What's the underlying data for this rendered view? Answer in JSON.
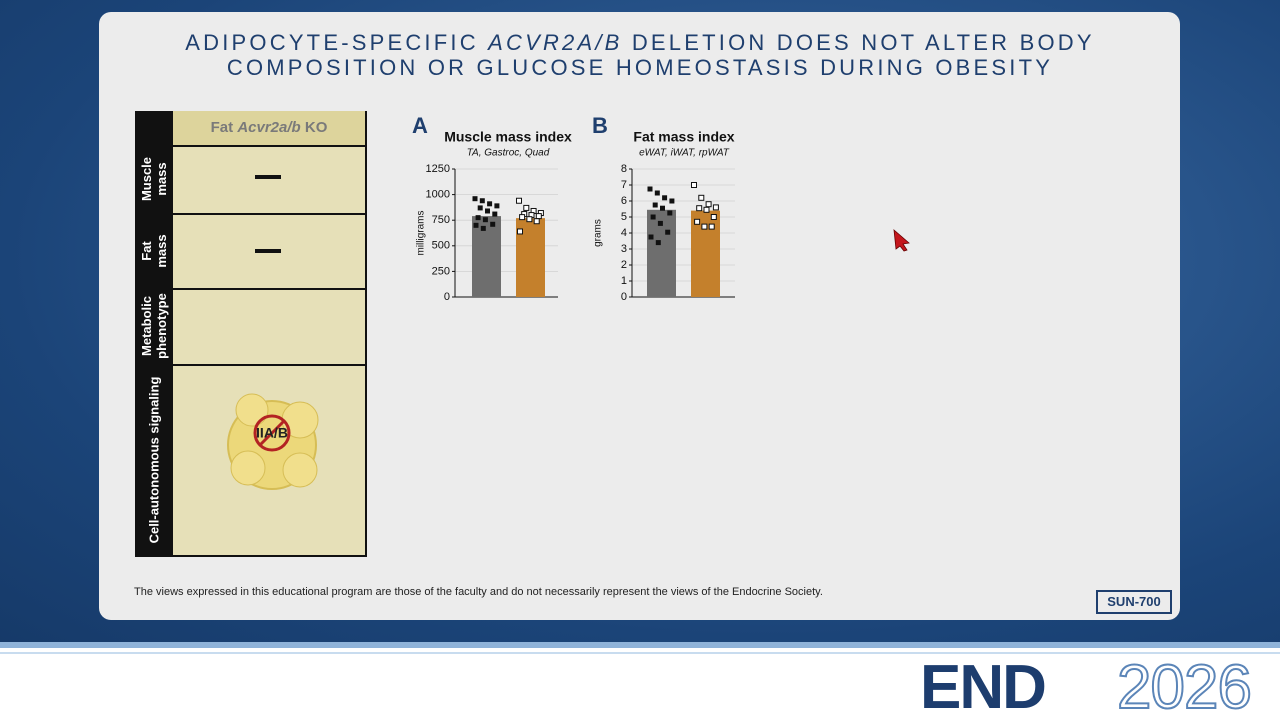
{
  "title": {
    "parts": [
      "ADIPOCYTE-SPECIFIC ",
      "ACVR2A/B",
      " DELETION DOES NOT ALTER BODY COMPOSITION OR GLUCOSE HOMEOSTASIS DURING OBESITY"
    ]
  },
  "table": {
    "header": [
      "Fat ",
      "Acvr2a/b",
      " KO"
    ],
    "rows": [
      "Muscle mass",
      "Fat mass",
      "Metabolic phenotype",
      "Cell-autonomous signaling"
    ],
    "receptor_label": "IIA/B"
  },
  "chart_data": [
    {
      "type": "bar",
      "panel": "A",
      "title": "Muscle mass index",
      "subtitle": "TA, Gastroc, Quad",
      "y_label": "milligrams",
      "values": [
        790,
        770
      ],
      "colors": [
        "#6e6e6e",
        "#c4802c"
      ],
      "points": [
        [
          960,
          940,
          910,
          890,
          870,
          840,
          810,
          775,
          755,
          710,
          700,
          670
        ],
        [
          940,
          870,
          840,
          820,
          810,
          800,
          790,
          780,
          760,
          740,
          640
        ]
      ],
      "ylim": [
        0,
        1250
      ],
      "yticks": [
        0,
        250,
        500,
        750,
        1000,
        1250
      ],
      "grid": true
    },
    {
      "type": "bar",
      "panel": "B",
      "title": "Fat mass index",
      "subtitle": "eWAT, iWAT, rpWAT",
      "y_label": "grams",
      "values": [
        5.45,
        5.4
      ],
      "colors": [
        "#6e6e6e",
        "#c4802c"
      ],
      "points": [
        [
          6.75,
          6.5,
          6.2,
          6.0,
          5.75,
          5.55,
          5.25,
          5.0,
          4.6,
          4.05,
          3.75,
          3.4
        ],
        [
          7.0,
          6.2,
          5.8,
          5.6,
          5.55,
          5.45,
          5.0,
          4.7,
          4.4,
          4.4
        ]
      ],
      "ylim": [
        0,
        8
      ],
      "yticks": [
        0,
        1,
        2,
        3,
        4,
        5,
        6,
        7,
        8
      ],
      "grid": true
    }
  ],
  "footer": "The views expressed in this educational program are those of the faculty and do not necessarily represent the views of the Endocrine Society.",
  "badge": "SUN-700",
  "logo": {
    "left": "END",
    "right": "2026"
  }
}
